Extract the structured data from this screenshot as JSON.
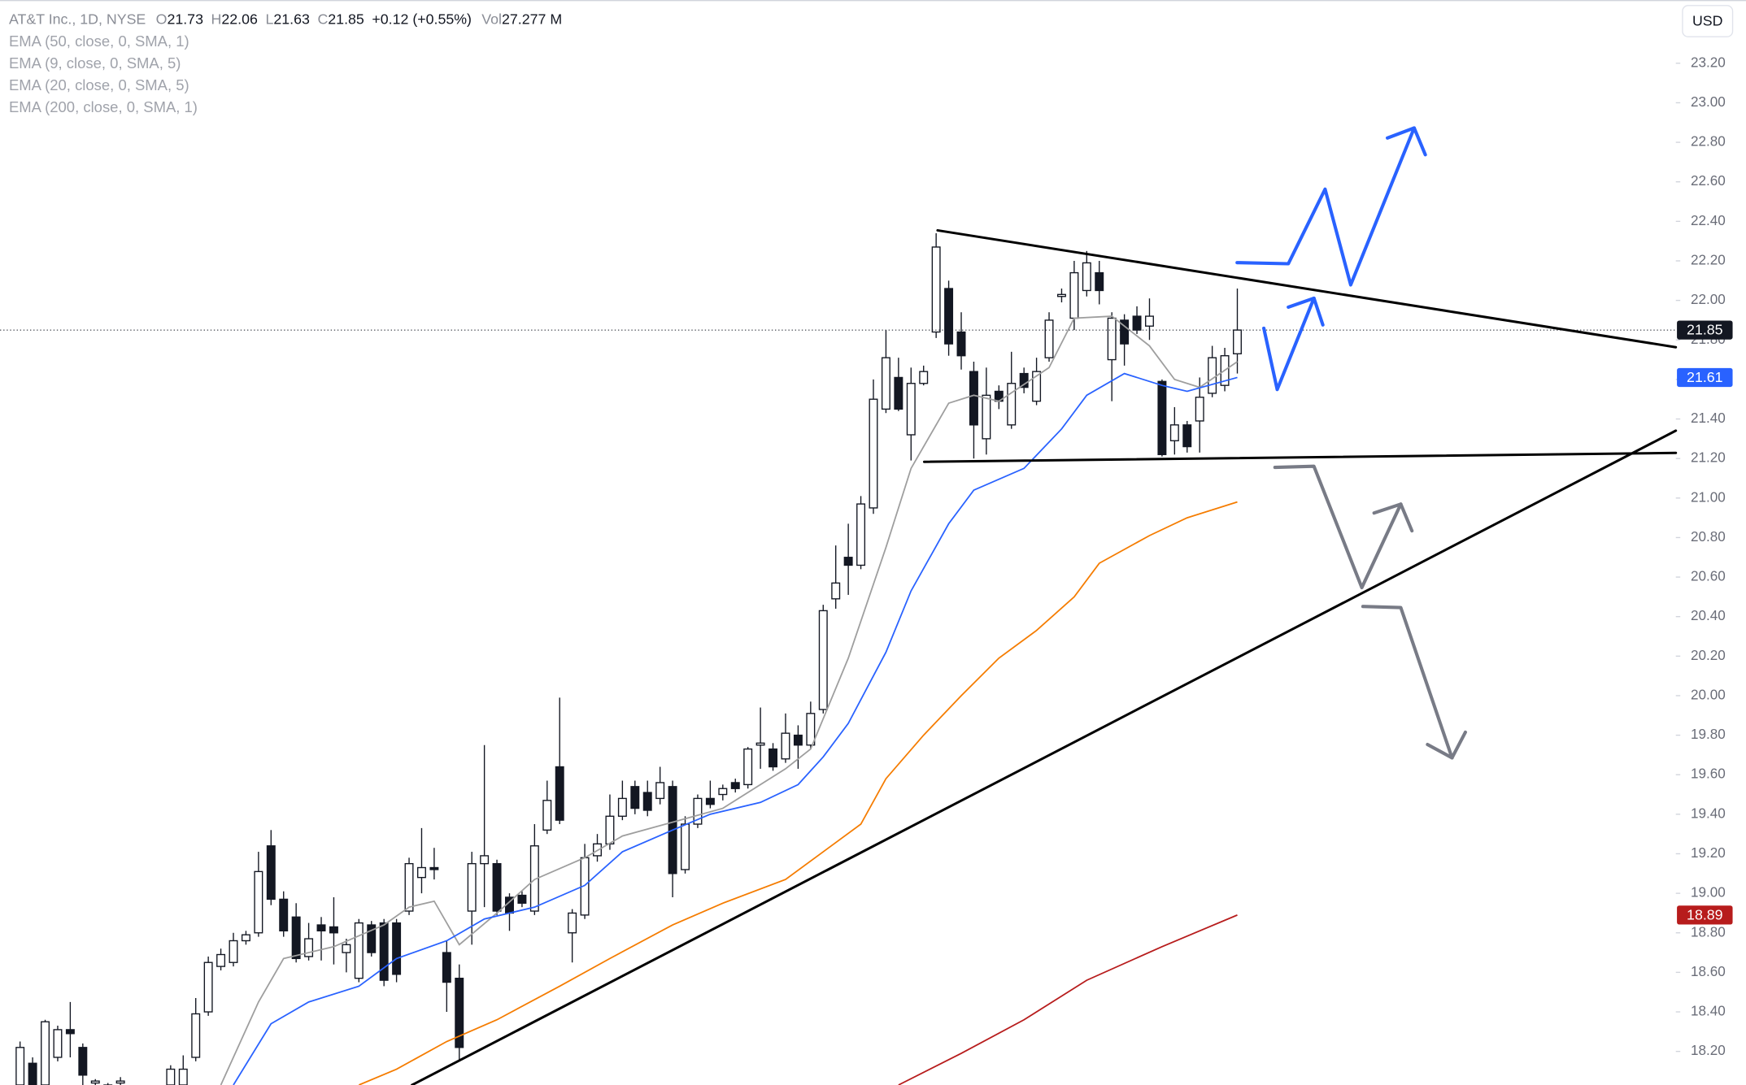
{
  "chart_data": {
    "type": "candlestick",
    "title": "AT&T Inc., 1D, NYSE",
    "header_labels": {
      "open": "O",
      "high": "H",
      "low": "L",
      "close": "C",
      "volume": "Vol"
    },
    "change": "+0.12 (+0.55%)",
    "volume": "27.277 M",
    "currency": "USD",
    "ylim": [
      18.03,
      23.52
    ],
    "yticks": [
      {
        "value": 18.2,
        "label": "18.20"
      },
      {
        "value": 18.4,
        "label": "18.40"
      },
      {
        "value": 18.6,
        "label": "18.60"
      },
      {
        "value": 18.8,
        "label": "18.80"
      },
      {
        "value": 19,
        "label": "19.00"
      },
      {
        "value": 19.2,
        "label": "19.20"
      },
      {
        "value": 19.4,
        "label": "19.40"
      },
      {
        "value": 19.6,
        "label": "19.60"
      },
      {
        "value": 19.8,
        "label": "19.80"
      },
      {
        "value": 20,
        "label": "20.00"
      },
      {
        "value": 20.2,
        "label": "20.20"
      },
      {
        "value": 20.4,
        "label": "20.40"
      },
      {
        "value": 20.6,
        "label": "20.60"
      },
      {
        "value": 20.8,
        "label": "20.80"
      },
      {
        "value": 21,
        "label": "21.00"
      },
      {
        "value": 21.2,
        "label": "21.20"
      },
      {
        "value": 21.4,
        "label": "21.40"
      },
      {
        "value": 21.6,
        "label": "21.60"
      },
      {
        "value": 21.8,
        "label": "21.80"
      },
      {
        "value": 22,
        "label": "22.00"
      },
      {
        "value": 22.2,
        "label": "22.20"
      },
      {
        "value": 22.4,
        "label": "22.40"
      },
      {
        "value": 22.6,
        "label": "22.60"
      },
      {
        "value": 22.8,
        "label": "22.80"
      },
      {
        "value": 23,
        "label": "23.00"
      },
      {
        "value": 23.2,
        "label": "23.20"
      }
    ],
    "up_color": "#ffffff",
    "down_color": "#131722",
    "open": [
      18.03,
      18.14,
      18.03,
      18.17,
      18.31,
      18.22,
      18.04,
      18.02,
      18.04,
      17.98,
      17.96,
      17.99,
      18.03,
      18.03,
      18.17,
      18.4,
      18.63,
      18.65,
      18.76,
      18.8,
      19.24,
      18.97,
      18.88,
      18.68,
      18.84,
      18.83,
      18.7,
      18.57,
      18.84,
      18.85,
      18.85,
      18.91,
      19.08,
      19.13,
      18.7,
      18.57,
      18.91,
      19.15,
      19.15,
      18.98,
      18.99,
      18.91,
      19.32,
      19.64,
      18.8,
      18.89,
      19.19,
      19.25,
      19.39,
      19.54,
      19.51,
      19.48,
      19.54,
      19.12,
      19.35,
      19.48,
      19.5,
      19.56,
      19.55,
      19.75,
      19.73,
      19.68,
      19.8,
      19.75,
      19.93,
      20.49,
      20.7,
      20.66,
      20.95,
      21.45,
      21.61,
      21.32,
      21.58,
      21.84,
      22.06,
      21.84,
      21.64,
      21.3,
      21.54,
      21.37,
      21.63,
      21.49,
      21.71,
      22.02,
      21.91,
      22.05,
      22.14,
      21.7,
      21.9,
      21.92,
      21.87,
      21.59,
      21.29,
      21.37,
      21.39,
      21.53,
      21.57,
      21.73
    ],
    "high": [
      18.25,
      18.17,
      18.36,
      18.33,
      18.45,
      18.24,
      18.06,
      18.04,
      18.07,
      18.02,
      18.01,
      18.03,
      18.13,
      18.18,
      18.47,
      18.68,
      18.72,
      18.8,
      18.81,
      19.21,
      19.32,
      19.01,
      18.95,
      18.85,
      18.88,
      18.98,
      18.77,
      18.87,
      18.86,
      18.87,
      18.87,
      19.18,
      19.33,
      19.23,
      18.76,
      18.64,
      19.21,
      19.75,
      19.17,
      19.0,
      19.01,
      19.35,
      19.57,
      19.99,
      18.92,
      19.25,
      19.3,
      19.5,
      19.57,
      19.57,
      19.57,
      19.64,
      19.57,
      19.39,
      19.5,
      19.57,
      19.55,
      19.58,
      19.74,
      19.94,
      19.76,
      19.91,
      19.85,
      19.97,
      20.46,
      20.76,
      20.87,
      21.01,
      21.6,
      21.85,
      21.71,
      21.66,
      21.67,
      22.34,
      22.1,
      21.94,
      21.69,
      21.66,
      21.57,
      21.74,
      21.66,
      21.71,
      21.94,
      22.06,
      22.2,
      22.25,
      22.2,
      21.94,
      21.93,
      21.97,
      22.01,
      21.6,
      21.46,
      21.39,
      21.61,
      21.77,
      21.76,
      22.06
    ],
    "low": [
      18.02,
      18.02,
      18.02,
      18.15,
      18.17,
      18.03,
      18.02,
      17.95,
      17.98,
      17.93,
      17.9,
      17.94,
      18.01,
      18.01,
      18.15,
      18.38,
      18.61,
      18.63,
      18.74,
      18.78,
      18.94,
      18.78,
      18.65,
      18.66,
      18.66,
      18.64,
      18.6,
      18.55,
      18.68,
      18.53,
      18.55,
      18.89,
      19.0,
      19.07,
      18.4,
      18.15,
      18.74,
      18.93,
      18.89,
      18.81,
      18.93,
      18.89,
      19.3,
      19.35,
      18.65,
      18.87,
      19.16,
      19.22,
      19.37,
      19.4,
      19.39,
      19.45,
      18.98,
      19.1,
      19.33,
      19.43,
      19.47,
      19.51,
      19.53,
      19.63,
      19.62,
      19.66,
      19.63,
      19.73,
      19.91,
      20.44,
      20.51,
      20.64,
      20.92,
      21.43,
      21.44,
      21.19,
      21.57,
      21.81,
      21.72,
      21.65,
      21.2,
      21.22,
      21.45,
      21.35,
      21.53,
      21.47,
      21.69,
      21.99,
      21.85,
      22.02,
      21.98,
      21.49,
      21.67,
      21.83,
      21.8,
      21.21,
      21.22,
      21.23,
      21.23,
      21.51,
      21.54,
      21.63
    ],
    "close": [
      18.22,
      18.03,
      18.35,
      18.31,
      18.29,
      18.08,
      18.05,
      18.03,
      18.05,
      18.0,
      17.99,
      18.01,
      18.11,
      18.11,
      18.39,
      18.65,
      18.69,
      18.76,
      18.79,
      19.11,
      18.97,
      18.81,
      18.67,
      18.77,
      18.81,
      18.8,
      18.74,
      18.85,
      18.7,
      18.56,
      18.59,
      19.15,
      19.13,
      19.12,
      18.55,
      18.22,
      19.15,
      19.19,
      18.91,
      18.9,
      18.95,
      19.24,
      19.47,
      19.37,
      18.9,
      19.18,
      19.25,
      19.39,
      19.48,
      19.43,
      19.42,
      19.56,
      19.1,
      19.35,
      19.48,
      19.45,
      19.53,
      19.53,
      19.73,
      19.76,
      19.64,
      19.81,
      19.75,
      19.91,
      20.43,
      20.57,
      20.66,
      20.97,
      21.5,
      21.71,
      21.45,
      21.58,
      21.64,
      22.27,
      21.78,
      21.72,
      21.37,
      21.52,
      21.49,
      21.58,
      21.56,
      21.64,
      21.9,
      22.03,
      22.14,
      22.19,
      22.05,
      21.91,
      21.78,
      21.85,
      21.92,
      21.22,
      21.37,
      21.26,
      21.51,
      21.71,
      21.72,
      21.85
    ],
    "series": [
      {
        "name": "EMA (50, close, 0, SMA, 1)",
        "color": "#f57c00",
        "x": [
          27,
          30,
          34,
          38,
          43,
          47,
          52,
          56,
          61,
          64,
          67,
          69,
          72,
          75,
          78,
          81,
          84,
          86,
          90,
          93,
          97
        ],
        "values": [
          18.03,
          18.11,
          18.25,
          18.36,
          18.53,
          18.67,
          18.84,
          18.95,
          19.07,
          19.21,
          19.35,
          19.58,
          19.8,
          20.0,
          20.19,
          20.33,
          20.5,
          20.67,
          20.81,
          20.9,
          20.98
        ]
      },
      {
        "name": "EMA (9, close, 0, SMA, 5)",
        "color": "#9e9e9e",
        "x": [
          16,
          19,
          21,
          25,
          29,
          31,
          33,
          35,
          38,
          41,
          45,
          48,
          52,
          56,
          61,
          63,
          66,
          69,
          71,
          74,
          76,
          78,
          82,
          84,
          87,
          90,
          92,
          94,
          97
        ],
        "values": [
          18.03,
          18.45,
          18.67,
          18.73,
          18.84,
          18.93,
          18.96,
          18.74,
          18.9,
          19.07,
          19.18,
          19.29,
          19.36,
          19.43,
          19.63,
          19.73,
          20.19,
          20.75,
          21.15,
          21.48,
          21.52,
          21.49,
          21.66,
          21.91,
          21.92,
          21.77,
          21.6,
          21.56,
          21.69
        ]
      },
      {
        "name": "EMA (20, close, 0, SMA, 5)",
        "color": "#2962ff",
        "x": [
          17,
          20,
          23,
          27,
          30,
          34,
          37,
          41,
          45,
          48,
          52,
          55,
          59,
          62,
          64,
          66,
          69,
          71,
          74,
          76,
          80,
          83,
          85,
          88,
          91,
          93,
          97
        ],
        "values": [
          18.03,
          18.34,
          18.45,
          18.53,
          18.67,
          18.76,
          18.87,
          18.93,
          19.04,
          19.21,
          19.32,
          19.4,
          19.46,
          19.55,
          19.69,
          19.86,
          20.22,
          20.53,
          20.87,
          21.04,
          21.15,
          21.35,
          21.52,
          21.63,
          21.57,
          21.54,
          21.61
        ]
      },
      {
        "name": "EMA (200, close, 0, SMA, 1)",
        "color": "#b71c1c",
        "x": [
          70,
          75,
          80,
          85,
          91,
          97
        ],
        "values": [
          18.03,
          18.19,
          18.36,
          18.56,
          18.73,
          18.89
        ]
      }
    ]
  }
}
